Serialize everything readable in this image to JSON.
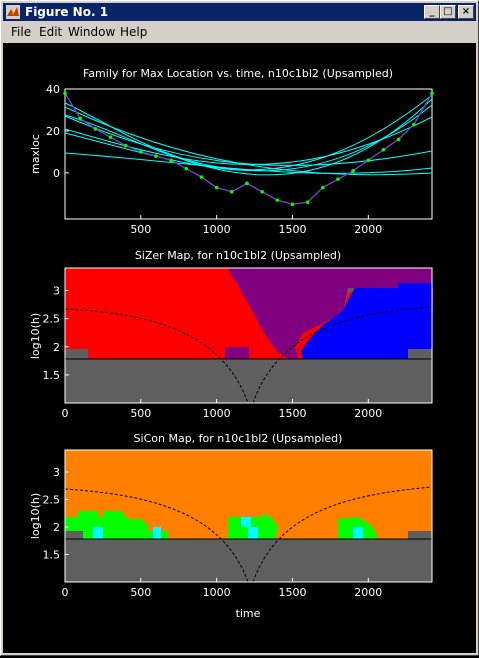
{
  "window": {
    "title": "Figure No. 1",
    "buttons": {
      "minimize": "_",
      "maximize": "□",
      "close": "×"
    }
  },
  "menu": [
    "File",
    "Edit",
    "Window",
    "Help"
  ],
  "colors": {
    "red": "#ff0000",
    "purple": "#800080",
    "blue": "#0000ff",
    "gray": "#5f5f5f",
    "orange": "#ff8000",
    "green": "#00ff00",
    "cyan": "#00ffff"
  },
  "chart_data": [
    {
      "type": "line",
      "title": "Family for Max Location vs. time, n10c1bl2 (Upsampled)",
      "xlabel": "",
      "ylabel": "maxloc",
      "xlim": [
        0,
        2420
      ],
      "ylim": [
        -22,
        40
      ],
      "xticks": [
        "500",
        "1000",
        "1500",
        "2000"
      ],
      "yticks": [
        "40",
        "20",
        "0"
      ],
      "data_points_description": "green dots",
      "x": [
        0,
        100,
        200,
        300,
        400,
        500,
        600,
        700,
        800,
        900,
        1000,
        1100,
        1200,
        1300,
        1400,
        1500,
        1600,
        1700,
        1800,
        1900,
        2000,
        2100,
        2200,
        2300,
        2420
      ],
      "y": [
        38,
        26,
        21,
        17,
        13,
        10,
        8,
        6,
        2,
        -2,
        -7,
        -9,
        -5,
        -9,
        -13,
        -15,
        -14,
        -7,
        -3,
        1,
        6,
        11,
        16,
        23,
        38
      ]
    },
    {
      "type": "heatmap",
      "title": "SiZer Map, for n10c1bl2 (Upsampled)",
      "xlabel": "",
      "ylabel": "log10(h)",
      "xlim": [
        0,
        2420
      ],
      "ylim": [
        1.0,
        3.4
      ],
      "xticks": [
        "0",
        "500",
        "1000",
        "1500",
        "2000"
      ],
      "yticks": [
        "3",
        "2.5",
        "2",
        "1.5"
      ],
      "regions": "red (increasing) left, purple (insignificant) middle, blue (decreasing) right, gray below 1.8"
    },
    {
      "type": "heatmap",
      "title": "SiCon Map, for n10c1bl2 (Upsampled)",
      "xlabel": "time",
      "ylabel": "log10(h)",
      "xlim": [
        0,
        2420
      ],
      "ylim": [
        1.0,
        3.4
      ],
      "xticks": [
        "0",
        "500",
        "1000",
        "1500",
        "2000"
      ],
      "yticks": [
        "3",
        "2.5",
        "2",
        "1.5"
      ],
      "regions": "orange background, green and cyan patches near h≈2, gray below 1.8"
    }
  ]
}
